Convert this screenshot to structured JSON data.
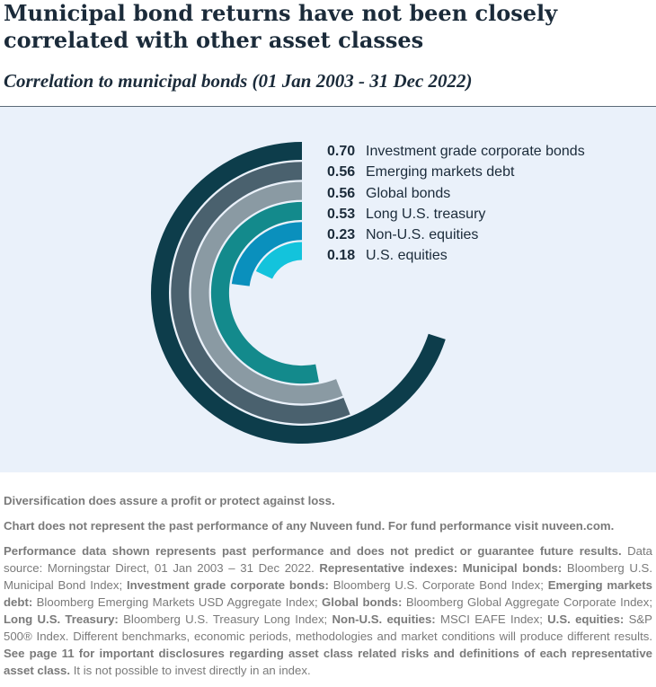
{
  "title": "Municipal bond returns have not been closely correlated with other asset classes",
  "subtitle": "Correlation to municipal bonds (01 Jan 2003 - 31 Dec 2022)",
  "chart_data": {
    "type": "radial-bar",
    "title": "Municipal bond returns have not been closely correlated with other asset classes",
    "subtitle": "Correlation to municipal bonds (01 Jan 2003 - 31 Dec 2022)",
    "max_value": 1.0,
    "categories": [
      "Investment grade corporate bonds",
      "Emerging markets debt",
      "Global bonds",
      "Long U.S. treasury",
      "Non-U.S. equities",
      "U.S. equities"
    ],
    "values": [
      0.7,
      0.56,
      0.56,
      0.53,
      0.23,
      0.18
    ],
    "labels": [
      "0.70",
      "0.56",
      "0.56",
      "0.53",
      "0.23",
      "0.18"
    ],
    "colors": [
      "#0d3d4b",
      "#4a616e",
      "#8a9aa3",
      "#138a8c",
      "#0a90bd",
      "#13c3dc"
    ]
  },
  "footer": {
    "line1": "Diversification does assure a profit or protect against loss.",
    "line2": "Chart does not represent the past performance of any Nuveen fund. For fund performance visit nuveen.com.",
    "p3_a": "Performance data shown represents past performance and does not predict or guarantee future results.",
    "p3_b": " Data source: Morningstar Direct, 01 Jan 2003 – 31 Dec 2022. ",
    "p3_c": "Representative indexes: Municipal bonds:",
    "p3_d": " Bloomberg U.S. Municipal Bond Index; ",
    "p3_e": "Investment grade corporate bonds:",
    "p3_f": " Bloomberg U.S. Corporate Bond Index; ",
    "p3_g": "Emerging markets debt:",
    "p3_h": " Bloomberg Emerging Markets USD Aggregate Index; ",
    "p3_i": "Global bonds:",
    "p3_j": " Bloomberg Global Aggregate Corporate Index; ",
    "p3_k": "Long U.S. Treasury:",
    "p3_l": " Bloomberg U.S. Treasury Long Index; ",
    "p3_m": "Non-U.S. equities:",
    "p3_n": " MSCI EAFE Index; ",
    "p3_o": "U.S. equities:",
    "p3_p": " S&P 500® Index. Different benchmarks, economic periods, methodologies and market conditions will produce different results. ",
    "p3_q": "See page 11 for important disclosures regarding asset class related risks and definitions of each representative asset class.",
    "p3_r": " It is not possible to invest directly in an index."
  }
}
